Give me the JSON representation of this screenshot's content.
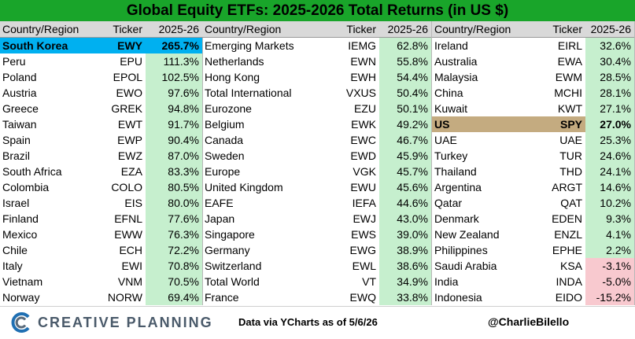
{
  "title": "Global Equity ETFs: 2025-2026 Total Returns (in US $)",
  "headers": {
    "country": "Country/Region",
    "ticker": "Ticker",
    "ret": "2025-26"
  },
  "colors": {
    "title_bg": "#19a52a",
    "positive": "#c6efce",
    "negative": "#f8c9cf",
    "highlight_top": "#00b0f0",
    "highlight_us": "#c4ab80"
  },
  "panels": [
    {
      "rows": [
        {
          "country": "South Korea",
          "ticker": "EWY",
          "ret": "265.7%",
          "highlight": "top"
        },
        {
          "country": "Peru",
          "ticker": "EPU",
          "ret": "111.3%"
        },
        {
          "country": "Poland",
          "ticker": "EPOL",
          "ret": "102.5%"
        },
        {
          "country": "Austria",
          "ticker": "EWO",
          "ret": "97.6%"
        },
        {
          "country": "Greece",
          "ticker": "GREK",
          "ret": "94.8%"
        },
        {
          "country": "Taiwan",
          "ticker": "EWT",
          "ret": "91.7%"
        },
        {
          "country": "Spain",
          "ticker": "EWP",
          "ret": "90.4%"
        },
        {
          "country": "Brazil",
          "ticker": "EWZ",
          "ret": "87.0%"
        },
        {
          "country": "South Africa",
          "ticker": "EZA",
          "ret": "83.3%"
        },
        {
          "country": "Colombia",
          "ticker": "COLO",
          "ret": "80.5%"
        },
        {
          "country": "Israel",
          "ticker": "EIS",
          "ret": "80.0%"
        },
        {
          "country": "Finland",
          "ticker": "EFNL",
          "ret": "77.6%"
        },
        {
          "country": "Mexico",
          "ticker": "EWW",
          "ret": "76.3%"
        },
        {
          "country": "Chile",
          "ticker": "ECH",
          "ret": "72.2%"
        },
        {
          "country": "Italy",
          "ticker": "EWI",
          "ret": "70.8%"
        },
        {
          "country": "Vietnam",
          "ticker": "VNM",
          "ret": "70.5%"
        },
        {
          "country": "Norway",
          "ticker": "NORW",
          "ret": "69.4%"
        }
      ]
    },
    {
      "rows": [
        {
          "country": "Emerging Markets",
          "ticker": "IEMG",
          "ret": "62.8%"
        },
        {
          "country": "Netherlands",
          "ticker": "EWN",
          "ret": "55.8%"
        },
        {
          "country": "Hong Kong",
          "ticker": "EWH",
          "ret": "54.4%"
        },
        {
          "country": "Total International",
          "ticker": "VXUS",
          "ret": "50.4%"
        },
        {
          "country": "Eurozone",
          "ticker": "EZU",
          "ret": "50.1%"
        },
        {
          "country": "Belgium",
          "ticker": "EWK",
          "ret": "49.2%"
        },
        {
          "country": "Canada",
          "ticker": "EWC",
          "ret": "46.7%"
        },
        {
          "country": "Sweden",
          "ticker": "EWD",
          "ret": "45.9%"
        },
        {
          "country": "Europe",
          "ticker": "VGK",
          "ret": "45.7%"
        },
        {
          "country": "United Kingdom",
          "ticker": "EWU",
          "ret": "45.6%"
        },
        {
          "country": "EAFE",
          "ticker": "IEFA",
          "ret": "44.6%"
        },
        {
          "country": "Japan",
          "ticker": "EWJ",
          "ret": "43.0%"
        },
        {
          "country": "Singapore",
          "ticker": "EWS",
          "ret": "39.0%"
        },
        {
          "country": "Germany",
          "ticker": "EWG",
          "ret": "38.9%"
        },
        {
          "country": "Switzerland",
          "ticker": "EWL",
          "ret": "38.6%"
        },
        {
          "country": "Total World",
          "ticker": "VT",
          "ret": "34.9%"
        },
        {
          "country": "France",
          "ticker": "EWQ",
          "ret": "33.8%"
        }
      ]
    },
    {
      "rows": [
        {
          "country": "Ireland",
          "ticker": "EIRL",
          "ret": "32.6%"
        },
        {
          "country": "Australia",
          "ticker": "EWA",
          "ret": "30.4%"
        },
        {
          "country": "Malaysia",
          "ticker": "EWM",
          "ret": "28.5%"
        },
        {
          "country": "China",
          "ticker": "MCHI",
          "ret": "28.1%"
        },
        {
          "country": "Kuwait",
          "ticker": "KWT",
          "ret": "27.1%"
        },
        {
          "country": "US",
          "ticker": "SPY",
          "ret": "27.0%",
          "highlight": "us"
        },
        {
          "country": "UAE",
          "ticker": "UAE",
          "ret": "25.3%"
        },
        {
          "country": "Turkey",
          "ticker": "TUR",
          "ret": "24.6%"
        },
        {
          "country": "Thailand",
          "ticker": "THD",
          "ret": "24.1%"
        },
        {
          "country": "Argentina",
          "ticker": "ARGT",
          "ret": "14.6%"
        },
        {
          "country": "Qatar",
          "ticker": "QAT",
          "ret": "10.2%"
        },
        {
          "country": "Denmark",
          "ticker": "EDEN",
          "ret": "9.3%"
        },
        {
          "country": "New Zealand",
          "ticker": "ENZL",
          "ret": "4.1%"
        },
        {
          "country": "Philippines",
          "ticker": "EPHE",
          "ret": "2.2%"
        },
        {
          "country": "Saudi Arabia",
          "ticker": "KSA",
          "ret": "-3.1%"
        },
        {
          "country": "India",
          "ticker": "INDA",
          "ret": "-5.0%"
        },
        {
          "country": "Indonesia",
          "ticker": "EIDO",
          "ret": "-15.2%"
        }
      ]
    }
  ],
  "footer": {
    "brand": "CREATIVE PLANNING",
    "logo_icon": "creative-planning-logo-icon",
    "source": "Data via YCharts as of 5/6/26",
    "handle": "@CharlieBilello"
  }
}
